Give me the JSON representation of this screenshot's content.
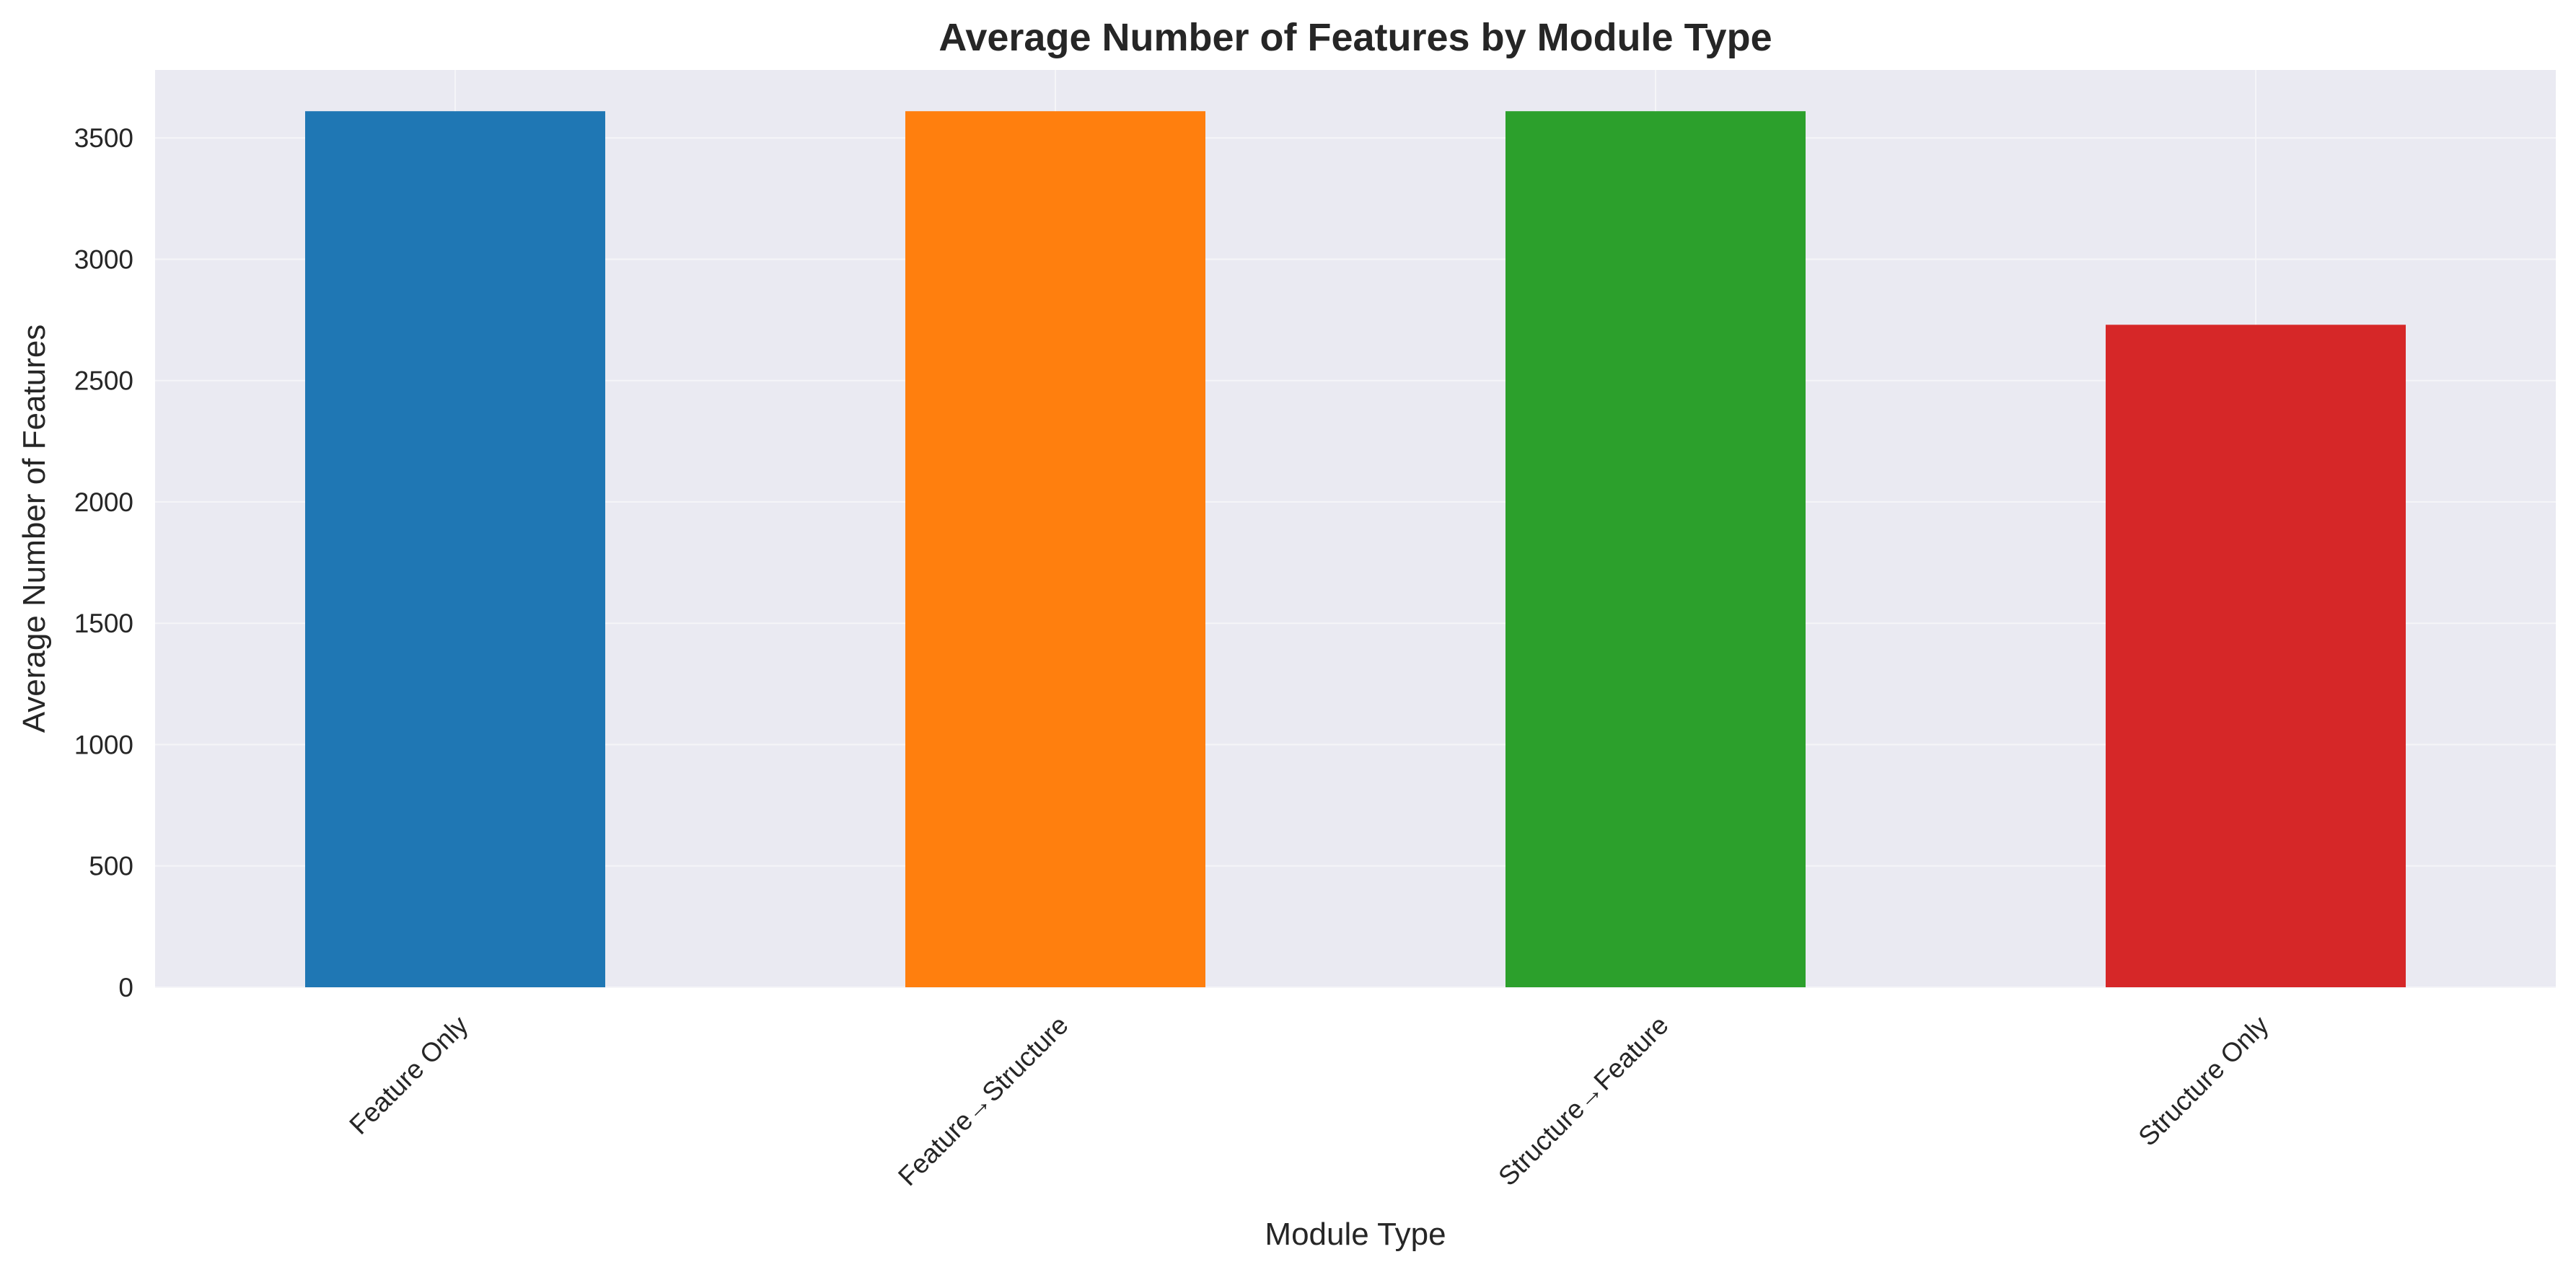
{
  "chart_data": {
    "type": "bar",
    "title": "Average Number of Features by Module Type",
    "xlabel": "Module Type",
    "ylabel": "Average Number of Features",
    "categories": [
      "Feature Only",
      "Feature→Structure",
      "Structure→Feature",
      "Structure Only"
    ],
    "values": [
      3610,
      3610,
      3610,
      2730
    ],
    "colors": [
      "#1f77b4",
      "#ff7f0e",
      "#2ca02c",
      "#d62728"
    ],
    "ylim": [
      0,
      3780
    ],
    "yticks": [
      0,
      500,
      1000,
      1500,
      2000,
      2500,
      3000,
      3500
    ],
    "grid": true,
    "background": "#eaeaf2",
    "legend": "none"
  }
}
